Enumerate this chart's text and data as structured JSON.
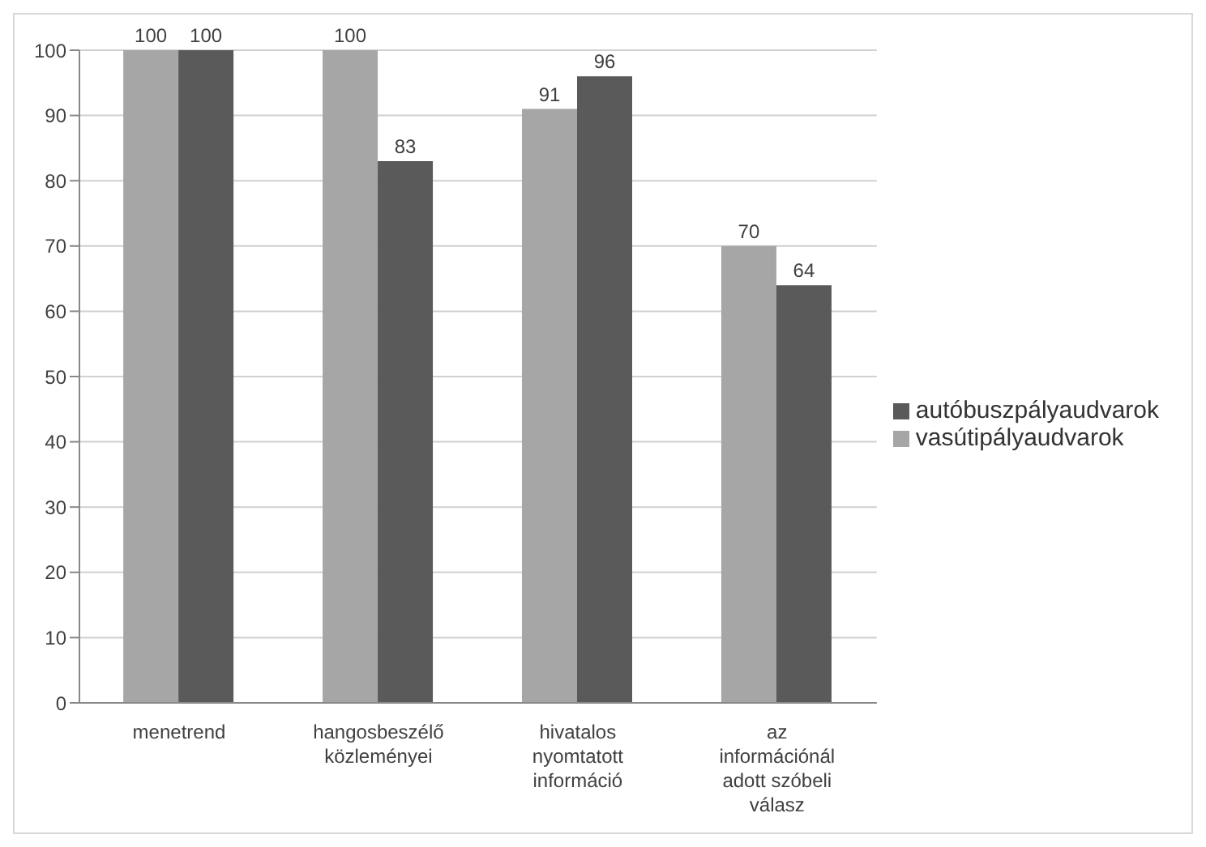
{
  "chart_data": {
    "type": "bar",
    "categories": [
      "menetrend",
      "hangosbeszélő közleményei",
      "hivatalos nyomtatott információ",
      "az információnál adott szóbeli válasz"
    ],
    "series": [
      {
        "name": "vasútipályaudvarok",
        "color": "#a6a6a6",
        "values": [
          100,
          100,
          91,
          70
        ]
      },
      {
        "name": "autóbuszpályaudvarok",
        "color": "#5a5a5a",
        "values": [
          100,
          83,
          96,
          64
        ]
      }
    ],
    "ylim": [
      0,
      100
    ],
    "yticks": [
      0,
      10,
      20,
      30,
      40,
      50,
      60,
      70,
      80,
      90,
      100
    ],
    "grid": "y",
    "legend": "right",
    "data_labels": true
  }
}
